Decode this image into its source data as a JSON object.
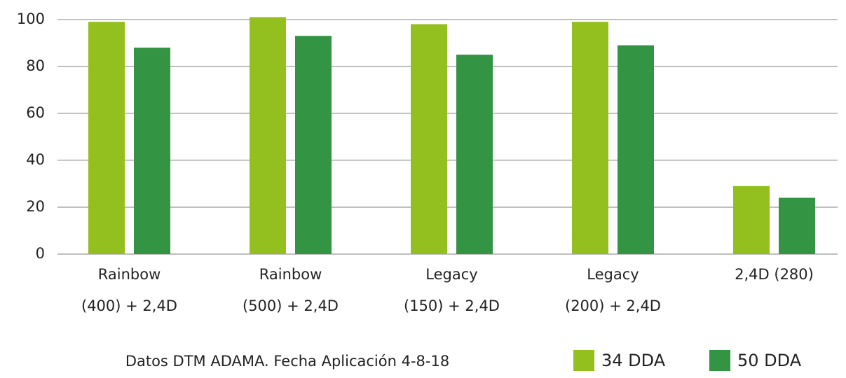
{
  "chart_data": {
    "type": "bar",
    "categories": [
      [
        "Rainbow",
        "(400) + 2,4D"
      ],
      [
        "Rainbow",
        "(500) + 2,4D"
      ],
      [
        "Legacy",
        "(150) + 2,4D"
      ],
      [
        "Legacy",
        "(200) + 2,4D"
      ],
      [
        "2,4D (280)"
      ]
    ],
    "series": [
      {
        "name": "34 DDA",
        "color": "#93c01f",
        "values": [
          99,
          101,
          98,
          99,
          29
        ]
      },
      {
        "name": "50 DDA",
        "color": "#339444",
        "values": [
          88,
          93,
          85,
          89,
          24
        ]
      }
    ],
    "ylim": [
      0,
      108
    ],
    "yticks": [
      0,
      20,
      40,
      60,
      80,
      100
    ],
    "grid": true,
    "annotation": "Datos DTM ADAMA. Fecha Aplicación 4-8-18",
    "legend": "bottom-right"
  }
}
